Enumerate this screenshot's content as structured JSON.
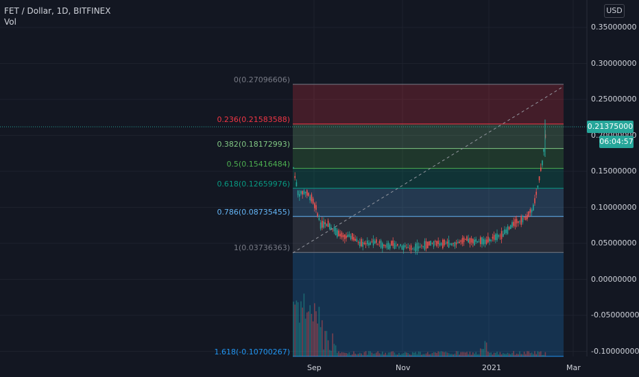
{
  "header": {
    "symbol_line": "FET / Dollar, 1D, BITFINEX",
    "volume_label": "Vol"
  },
  "currency_button": "USD",
  "price_axis": {
    "labels": [
      "0.35000000",
      "0.30000000",
      "0.25000000",
      "0.20000000",
      "0.15000000",
      "0.10000000",
      "0.05000000",
      "0.00000000",
      "-0.05000000",
      "-0.10000000"
    ]
  },
  "time_axis": {
    "labels": [
      "Sep",
      "Nov",
      "2021",
      "Mar"
    ]
  },
  "fib_levels": [
    {
      "ratio_label": "0(0.27096606)",
      "price": 0.27096606,
      "color": "#787b86"
    },
    {
      "ratio_label": "0.236(0.21583588)",
      "price": 0.21583588,
      "color": "#f23645"
    },
    {
      "ratio_label": "0.382(0.18172993)",
      "price": 0.18172993,
      "color": "#81c784"
    },
    {
      "ratio_label": "0.5(0.15416484)",
      "price": 0.15416484,
      "color": "#4caf50"
    },
    {
      "ratio_label": "0.618(0.12659976)",
      "price": 0.12659976,
      "color": "#089981"
    },
    {
      "ratio_label": "0.786(0.08735455)",
      "price": 0.08735455,
      "color": "#64b5f6"
    },
    {
      "ratio_label": "1(0.03736363)",
      "price": 0.03736363,
      "color": "#787b86"
    },
    {
      "ratio_label": "1.618(-0.10700267)",
      "price": -0.10700267,
      "color": "#2196f3"
    }
  ],
  "last_price": {
    "value": "0.21375000",
    "countdown": "06:04:57",
    "color": "#26a69a"
  },
  "colors": {
    "up": "#26a69a",
    "down": "#ef5350",
    "background": "#131722"
  }
}
